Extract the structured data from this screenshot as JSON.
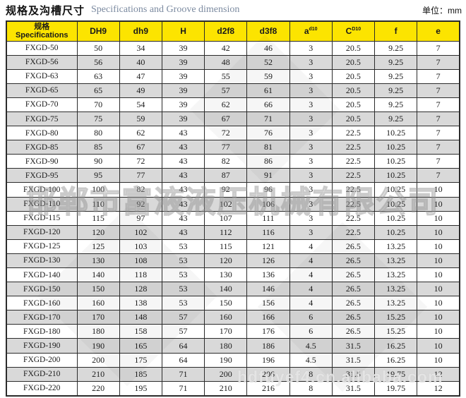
{
  "header": {
    "title_zh": "规格及沟槽尺寸",
    "title_en": "Specifications and Groove dimension",
    "unit_label": "单位：mm"
  },
  "table": {
    "columns": [
      {
        "zh": "规格",
        "en": "Specifications"
      },
      {
        "label": "DH9"
      },
      {
        "label": "dh9"
      },
      {
        "label": "H"
      },
      {
        "label": "d2f8"
      },
      {
        "label": "d3f8"
      },
      {
        "label": "a",
        "sup": "d10"
      },
      {
        "label": "C",
        "sup": "D10"
      },
      {
        "label": "f"
      },
      {
        "label": "e"
      }
    ],
    "rows": [
      {
        "spec": "FXGD-50",
        "values": [
          50,
          34,
          39,
          42,
          46,
          3,
          20.5,
          9.25,
          7
        ]
      },
      {
        "spec": "FXGD-56",
        "values": [
          56,
          40,
          39,
          48,
          52,
          3,
          20.5,
          9.25,
          7
        ]
      },
      {
        "spec": "FXGD-63",
        "values": [
          63,
          47,
          39,
          55,
          59,
          3,
          20.5,
          9.25,
          7
        ]
      },
      {
        "spec": "FXGD-65",
        "values": [
          65,
          49,
          39,
          57,
          61,
          3,
          20.5,
          9.25,
          7
        ]
      },
      {
        "spec": "FXGD-70",
        "values": [
          70,
          54,
          39,
          62,
          66,
          3,
          20.5,
          9.25,
          7
        ]
      },
      {
        "spec": "FXGD-75",
        "values": [
          75,
          59,
          39,
          67,
          71,
          3,
          20.5,
          9.25,
          7
        ]
      },
      {
        "spec": "FXGD-80",
        "values": [
          80,
          62,
          43,
          72,
          76,
          3,
          22.5,
          10.25,
          7
        ]
      },
      {
        "spec": "FXGD-85",
        "values": [
          85,
          67,
          43,
          77,
          81,
          3,
          22.5,
          10.25,
          7
        ]
      },
      {
        "spec": "FXGD-90",
        "values": [
          90,
          72,
          43,
          82,
          86,
          3,
          22.5,
          10.25,
          7
        ]
      },
      {
        "spec": "FXGD-95",
        "values": [
          95,
          77,
          43,
          87,
          91,
          3,
          22.5,
          10.25,
          7
        ]
      },
      {
        "spec": "FXGD-100",
        "values": [
          100,
          82,
          43,
          92,
          96,
          3,
          22.5,
          10.25,
          10
        ]
      },
      {
        "spec": "FXGD-110",
        "values": [
          110,
          92,
          43,
          102,
          106,
          3,
          22.5,
          10.25,
          10
        ]
      },
      {
        "spec": "FXGD-115",
        "values": [
          115,
          97,
          43,
          107,
          111,
          3,
          22.5,
          10.25,
          10
        ]
      },
      {
        "spec": "FXGD-120",
        "values": [
          120,
          102,
          43,
          112,
          116,
          3,
          22.5,
          10.25,
          10
        ]
      },
      {
        "spec": "FXGD-125",
        "values": [
          125,
          103,
          53,
          115,
          121,
          4,
          26.5,
          13.25,
          10
        ]
      },
      {
        "spec": "FXGD-130",
        "values": [
          130,
          108,
          53,
          120,
          126,
          4,
          26.5,
          13.25,
          10
        ]
      },
      {
        "spec": "FXGD-140",
        "values": [
          140,
          118,
          53,
          130,
          136,
          4,
          26.5,
          13.25,
          10
        ]
      },
      {
        "spec": "FXGD-150",
        "values": [
          150,
          128,
          53,
          140,
          146,
          4,
          26.5,
          13.25,
          10
        ]
      },
      {
        "spec": "FXGD-160",
        "values": [
          160,
          138,
          53,
          150,
          156,
          4,
          26.5,
          13.25,
          10
        ]
      },
      {
        "spec": "FXGD-170",
        "values": [
          170,
          148,
          57,
          160,
          166,
          6,
          26.5,
          15.25,
          10
        ]
      },
      {
        "spec": "FXGD-180",
        "values": [
          180,
          158,
          57,
          170,
          176,
          6,
          26.5,
          15.25,
          10
        ]
      },
      {
        "spec": "FXGD-190",
        "values": [
          190,
          165,
          64,
          180,
          186,
          4.5,
          31.5,
          16.25,
          10
        ]
      },
      {
        "spec": "FXGD-200",
        "values": [
          200,
          175,
          64,
          190,
          196,
          4.5,
          31.5,
          16.25,
          10
        ]
      },
      {
        "spec": "FXGD-210",
        "values": [
          210,
          185,
          71,
          200,
          206,
          8,
          31.5,
          19.75,
          12
        ]
      },
      {
        "spec": "FXGD-220",
        "values": [
          220,
          195,
          71,
          210,
          216,
          8,
          31.5,
          19.75,
          12
        ]
      }
    ]
  },
  "watermarks": {
    "company": "邯郸市富液液压机械有限公司",
    "url": "hdfuyef4.cn.alibaba.com"
  },
  "colors": {
    "header_bg": "#fce400",
    "row_alt_bg": "#d9d9d9",
    "border": "#2b2b2b",
    "title_en": "#7b8aa0"
  }
}
